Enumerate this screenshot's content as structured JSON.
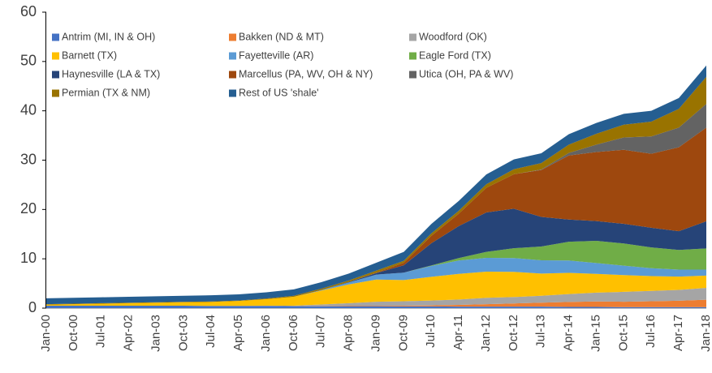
{
  "chart_data": {
    "type": "stacked_area",
    "categories": [
      "Jan-00",
      "Oct-00",
      "Jul-01",
      "Apr-02",
      "Jan-03",
      "Oct-03",
      "Jul-04",
      "Apr-05",
      "Jan-06",
      "Oct-06",
      "Jul-07",
      "Apr-08",
      "Jan-09",
      "Oct-09",
      "Jul-10",
      "Apr-11",
      "Jan-12",
      "Oct-12",
      "Jul-13",
      "Apr-14",
      "Jan-15",
      "Oct-15",
      "Jul-16",
      "Apr-17",
      "Jan-18"
    ],
    "ylim": [
      0,
      60
    ],
    "yticks": [
      0,
      10,
      20,
      30,
      40,
      50,
      60
    ],
    "grid": false,
    "series": [
      {
        "name": "Antrim (MI, IN & OH)",
        "color": "#4472c4",
        "values": [
          0.5,
          0.5,
          0.5,
          0.5,
          0.5,
          0.5,
          0.45,
          0.45,
          0.45,
          0.4,
          0.4,
          0.4,
          0.4,
          0.35,
          0.35,
          0.3,
          0.3,
          0.3,
          0.3,
          0.25,
          0.25,
          0.2,
          0.2,
          0.2,
          0.2
        ]
      },
      {
        "name": "Bakken (ND & MT)",
        "color": "#ed7d31",
        "values": [
          0,
          0,
          0,
          0,
          0,
          0,
          0,
          0,
          0,
          0,
          0.05,
          0.1,
          0.1,
          0.15,
          0.2,
          0.35,
          0.5,
          0.65,
          0.8,
          1.0,
          1.1,
          1.1,
          1.2,
          1.3,
          1.5
        ]
      },
      {
        "name": "Woodford (OK)",
        "color": "#a5a5a5",
        "values": [
          0,
          0,
          0,
          0,
          0,
          0,
          0,
          0,
          0.05,
          0.1,
          0.3,
          0.5,
          0.8,
          0.9,
          1.0,
          1.1,
          1.3,
          1.3,
          1.4,
          1.6,
          1.8,
          2.0,
          2.1,
          2.2,
          2.4
        ]
      },
      {
        "name": "Barnett (TX)",
        "color": "#ffc000",
        "values": [
          0.2,
          0.3,
          0.4,
          0.5,
          0.6,
          0.7,
          0.8,
          1.0,
          1.3,
          1.8,
          2.8,
          3.8,
          4.5,
          4.3,
          4.8,
          5.2,
          5.3,
          5.1,
          4.5,
          4.3,
          3.8,
          3.4,
          3.0,
          2.7,
          2.5
        ]
      },
      {
        "name": "Fayetteville (AR)",
        "color": "#5b9bd5",
        "values": [
          0,
          0,
          0,
          0,
          0,
          0,
          0,
          0,
          0,
          0,
          0.1,
          0.4,
          1.0,
          1.5,
          2.2,
          2.7,
          2.8,
          2.8,
          2.7,
          2.5,
          2.2,
          1.9,
          1.6,
          1.4,
          1.2
        ]
      },
      {
        "name": "Eagle Ford (TX)",
        "color": "#70ad47",
        "values": [
          0,
          0,
          0,
          0,
          0,
          0,
          0,
          0,
          0,
          0,
          0,
          0,
          0,
          0,
          0.1,
          0.5,
          1.2,
          2.0,
          2.8,
          3.8,
          4.5,
          4.5,
          4.2,
          4.0,
          4.3
        ]
      },
      {
        "name": "Haynesville (LA & TX)",
        "color": "#264478",
        "values": [
          0,
          0,
          0,
          0,
          0,
          0,
          0,
          0,
          0,
          0,
          0,
          0.1,
          0.3,
          1.5,
          4.5,
          6.5,
          8.0,
          8.0,
          6.0,
          4.5,
          4.0,
          4.0,
          4.0,
          3.8,
          5.5
        ]
      },
      {
        "name": "Marcellus (PA, WV, OH & NY)",
        "color": "#9e480e",
        "values": [
          0,
          0,
          0,
          0,
          0,
          0,
          0,
          0,
          0,
          0,
          0,
          0,
          0.1,
          0.5,
          1.5,
          2.5,
          5.0,
          7.0,
          9.5,
          13,
          14,
          15,
          15,
          17,
          19
        ]
      },
      {
        "name": "Utica (OH, PA & WV)",
        "color": "#636363",
        "values": [
          0,
          0,
          0,
          0,
          0,
          0,
          0,
          0,
          0,
          0,
          0,
          0,
          0,
          0,
          0,
          0,
          0,
          0,
          0.1,
          0.5,
          1.5,
          2.5,
          3.5,
          4.0,
          4.8
        ]
      },
      {
        "name": "Permian (TX & NM)",
        "color": "#997300",
        "values": [
          0.1,
          0.1,
          0.1,
          0.1,
          0.1,
          0.1,
          0.1,
          0.1,
          0.15,
          0.2,
          0.3,
          0.3,
          0.4,
          0.4,
          0.5,
          0.6,
          0.7,
          1.0,
          1.3,
          1.7,
          2.2,
          2.6,
          3.0,
          3.8,
          5.5
        ]
      },
      {
        "name": "Rest of US 'shale'",
        "color": "#255e91",
        "values": [
          1.2,
          1.2,
          1.2,
          1.2,
          1.2,
          1.2,
          1.25,
          1.25,
          1.25,
          1.3,
          1.3,
          1.4,
          1.6,
          1.8,
          1.9,
          2.0,
          2.0,
          2.0,
          2.0,
          2.1,
          2.2,
          2.2,
          2.2,
          2.2,
          2.3
        ]
      }
    ]
  }
}
